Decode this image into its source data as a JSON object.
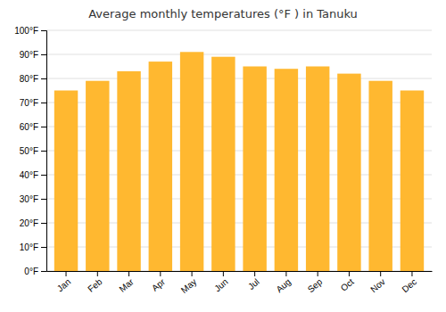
{
  "chart_data": {
    "type": "bar",
    "title": "Average monthly temperatures (°F ) in Tanuku",
    "categories": [
      "Jan",
      "Feb",
      "Mar",
      "Apr",
      "May",
      "Jun",
      "Jul",
      "Aug",
      "Sep",
      "Oct",
      "Nov",
      "Dec"
    ],
    "values": [
      75,
      79,
      83,
      87,
      91,
      89,
      85,
      84,
      85,
      82,
      79,
      75
    ],
    "color": "#FFB830",
    "ylim": [
      0,
      100
    ],
    "yticks": [
      {
        "value": 0,
        "label": "0°F"
      },
      {
        "value": 10,
        "label": "10°F"
      },
      {
        "value": 20,
        "label": "20°F"
      },
      {
        "value": 30,
        "label": "30°F"
      },
      {
        "value": 40,
        "label": "40°F"
      },
      {
        "value": 50,
        "label": "50°F"
      },
      {
        "value": 60,
        "label": "60°F"
      },
      {
        "value": 70,
        "label": "70°F"
      },
      {
        "value": 80,
        "label": "80°F"
      },
      {
        "value": 90,
        "label": "90°F"
      },
      {
        "value": 100,
        "label": "100°F"
      }
    ],
    "grid": true
  }
}
